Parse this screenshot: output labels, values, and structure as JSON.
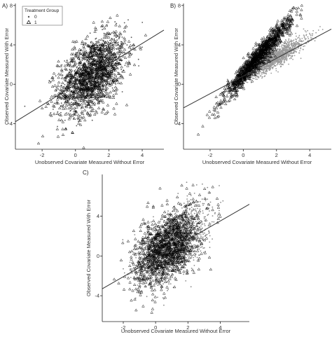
{
  "chart_data": [
    {
      "type": "scatter",
      "panel_label": "A)",
      "xlabel": "Unobserved Covariate Measured Without Error",
      "ylabel": "Observed  Covariate Measured With Error",
      "xlim": [
        -3.6,
        5.3
      ],
      "ylim": [
        -6.6,
        8.2
      ],
      "xticks": [
        -2,
        0,
        2,
        4
      ],
      "yticks": [
        -4,
        0,
        4,
        8
      ],
      "grid": false,
      "legend": {
        "title": "Treatment Group",
        "position": "top-left",
        "entries": [
          {
            "label": "0",
            "marker": "dot",
            "color": "#555555"
          },
          {
            "label": "1",
            "marker": "triangle",
            "color": "#000000"
          }
        ]
      },
      "series": [
        {
          "label": "0",
          "marker": "dot",
          "color": "#555555",
          "x_mean": 1.0,
          "x_sd": 1.0,
          "slope": 1.0,
          "intercept": 0.0,
          "noise_sd": 1.7,
          "count": 600
        },
        {
          "label": "1",
          "marker": "triangle",
          "color": "#000000",
          "x_mean": 1.0,
          "x_sd": 1.0,
          "slope": 1.0,
          "intercept": 0.0,
          "noise_sd": 1.8,
          "count": 1300
        }
      ],
      "fit_line": {
        "x": [
          -3.6,
          5.3
        ],
        "y": [
          -3.8,
          5.5
        ]
      }
    },
    {
      "type": "scatter",
      "panel_label": "B)",
      "xlabel": "Unobserved Covariate Measured Without Error",
      "ylabel": "Observed Covariate Measured With Error",
      "xlim": [
        -3.6,
        5.3
      ],
      "ylim": [
        -6.6,
        8.2
      ],
      "xticks": [
        -2,
        0,
        2,
        4
      ],
      "yticks": [
        -4,
        0,
        4,
        8
      ],
      "grid": false,
      "series": [
        {
          "label": "0",
          "marker": "dot",
          "color": "#9a9a9a",
          "x_mean": 1.9,
          "x_sd": 0.95,
          "slope": 1.0,
          "intercept": 0.7,
          "noise_sd": 0.45,
          "count": 1300
        },
        {
          "label": "1",
          "marker": "triangle",
          "color": "#000000",
          "x_mean": 0.9,
          "x_sd": 1.0,
          "slope": 1.95,
          "intercept": 1.0,
          "noise_sd": 0.55,
          "count": 1300
        }
      ],
      "fit_line": {
        "x": [
          -3.6,
          5.3
        ],
        "y": [
          -2.4,
          5.6
        ]
      }
    },
    {
      "type": "scatter",
      "panel_label": "C)",
      "xlabel": "Unobserved  Covariate Measured Without Error",
      "ylabel": "Observed Covariate Measured With Error",
      "xlim": [
        -3.3,
        5.8
      ],
      "ylim": [
        -6.6,
        8.2
      ],
      "xticks": [
        -2,
        0,
        2,
        4
      ],
      "yticks": [
        -4,
        0,
        4
      ],
      "grid": false,
      "series": [
        {
          "label": "0",
          "marker": "dot",
          "color": "#8a8a8a",
          "x_mean": 1.2,
          "x_sd": 1.0,
          "slope": 1.0,
          "intercept": 0.2,
          "noise_sd": 1.6,
          "count": 1300
        },
        {
          "label": "1",
          "marker": "triangle",
          "color": "#000000",
          "x_mean": 0.7,
          "x_sd": 1.0,
          "slope": 1.0,
          "intercept": 0.1,
          "noise_sd": 1.7,
          "count": 1300
        }
      ],
      "fit_line": {
        "x": [
          -3.3,
          5.8
        ],
        "y": [
          -3.3,
          5.2
        ]
      }
    }
  ]
}
